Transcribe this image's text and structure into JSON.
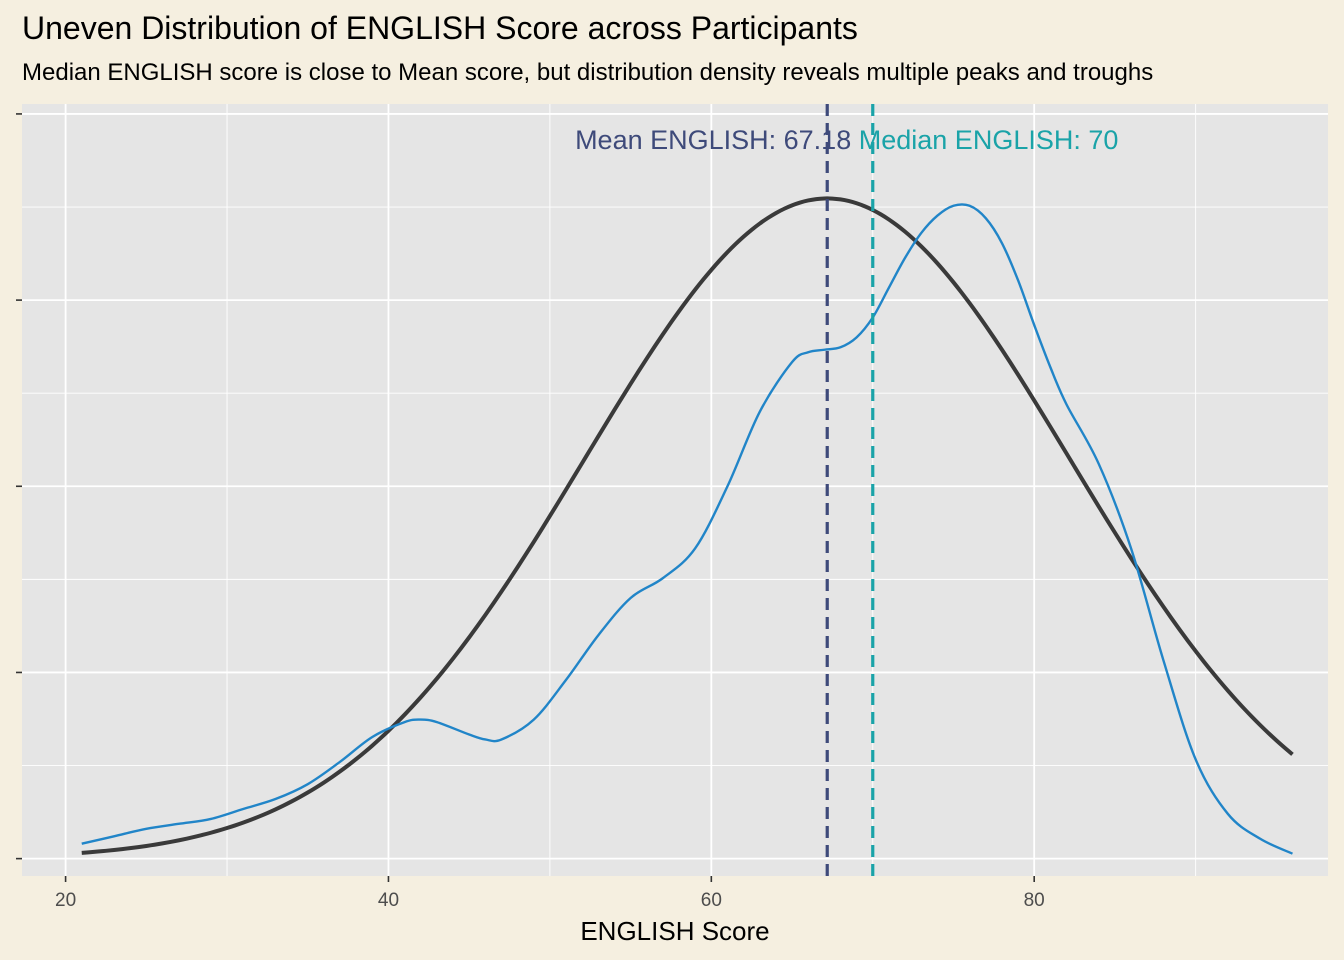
{
  "chart_data": {
    "type": "area",
    "title": "Uneven Distribution of ENGLISH Score across Participants",
    "subtitle": "Median ENGLISH score is close to Mean score, but distribution density reveals multiple peaks and troughs",
    "xlabel": "ENGLISH Score",
    "ylabel": "",
    "xlim": [
      17.3,
      98.2
    ],
    "ylim": [
      -0.0007,
      0.0304
    ],
    "x_ticks": [
      20,
      40,
      60,
      80
    ],
    "y_ticks": [
      0,
      0.0075,
      0.015,
      0.0225,
      0.03
    ],
    "y_tick_labels_shown": false,
    "grid": true,
    "legend": "none",
    "colors": {
      "background": "#f5efe0",
      "panel": "#e5e5e5",
      "gridline": "#ffffff",
      "density": "#2185c8",
      "normal": "#3a3a3a",
      "mean": "#3e4a7a",
      "median": "#1aa3a8"
    },
    "series": [
      {
        "kind": "density",
        "x": [
          21,
          23,
          25,
          27,
          29,
          31,
          33,
          35,
          37,
          39,
          41,
          42,
          43,
          45,
          46,
          47,
          49,
          51,
          53,
          55,
          57,
          59,
          61,
          63,
          65,
          66,
          67,
          68,
          69,
          70,
          71,
          72,
          73,
          74,
          75,
          76,
          77,
          78,
          79,
          80,
          81,
          82,
          84,
          86,
          88,
          90,
          92,
          94,
          96
        ],
        "values": [
          0.0006,
          0.0009,
          0.0012,
          0.0014,
          0.0016,
          0.002,
          0.0024,
          0.003,
          0.0039,
          0.0049,
          0.0055,
          0.0056,
          0.0055,
          0.005,
          0.0048,
          0.0048,
          0.0056,
          0.0072,
          0.009,
          0.0105,
          0.0113,
          0.0125,
          0.015,
          0.018,
          0.02,
          0.0204,
          0.0205,
          0.0206,
          0.021,
          0.0218,
          0.023,
          0.0242,
          0.0252,
          0.0259,
          0.0263,
          0.0263,
          0.0258,
          0.0248,
          0.0233,
          0.0215,
          0.0198,
          0.0183,
          0.0159,
          0.0125,
          0.008,
          0.004,
          0.0018,
          0.0008,
          0.0002
        ]
      },
      {
        "kind": "normal",
        "mean": 67.18,
        "sd": 15.0,
        "x_range": [
          21,
          96
        ]
      }
    ],
    "reference_lines": [
      {
        "label": "Mean ENGLISH: 67.18",
        "value": 67.18
      },
      {
        "label": "Median ENGLISH: 70",
        "value": 70
      }
    ]
  }
}
